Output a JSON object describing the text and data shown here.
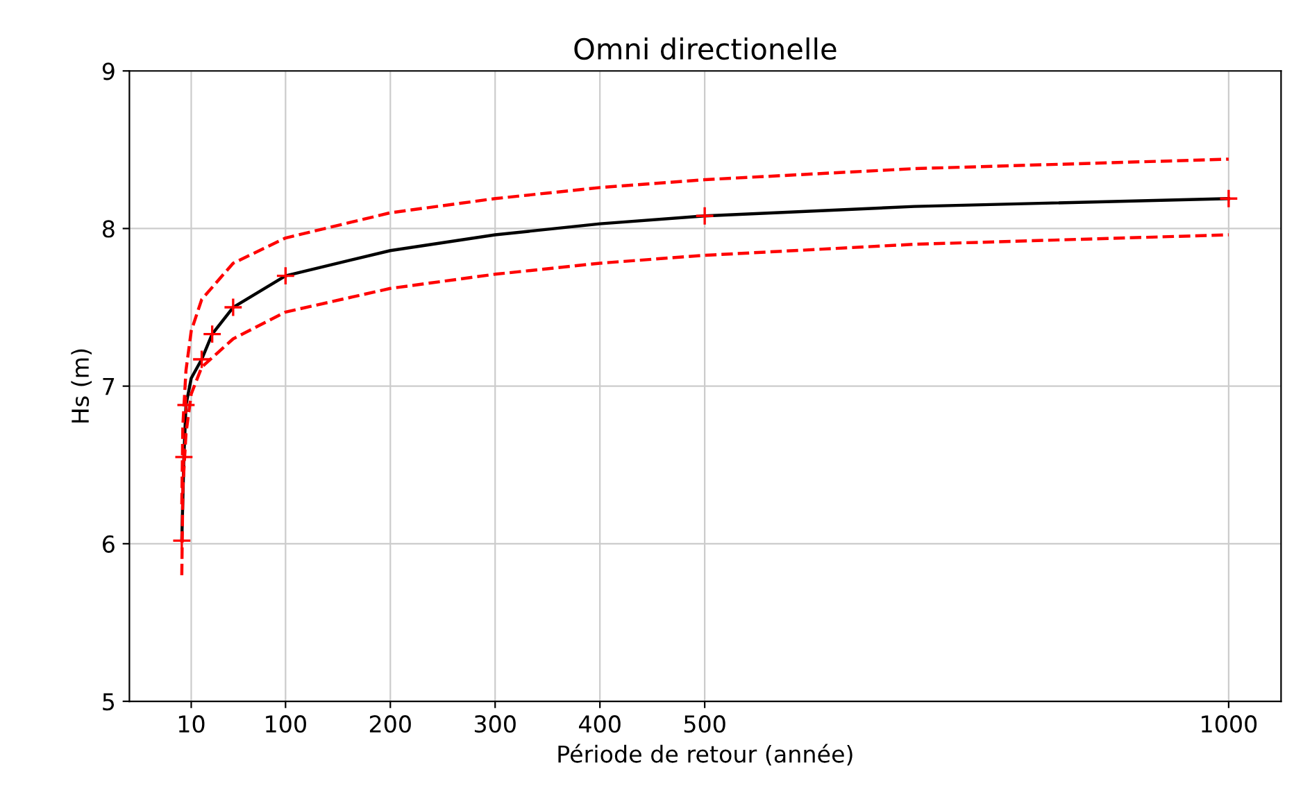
{
  "chart_data": {
    "type": "line",
    "title": "Omni directionelle",
    "xlabel": "Période de retour (année)",
    "ylabel": "Hs (m)",
    "xlim": [
      -49,
      1050
    ],
    "xticks": [
      10,
      100,
      200,
      300,
      400,
      500,
      1000
    ],
    "ylim": [
      5,
      9
    ],
    "yticks": [
      5,
      6,
      7,
      8,
      9
    ],
    "grid": true,
    "series": [
      {
        "color": "#000000",
        "line_style": "solid",
        "marker": "none",
        "x": [
          1,
          3,
          5,
          10,
          20,
          30,
          50,
          100,
          200,
          300,
          400,
          500,
          700,
          1000
        ],
        "values": [
          6.02,
          6.55,
          6.88,
          7.05,
          7.17,
          7.33,
          7.5,
          7.7,
          7.86,
          7.96,
          8.03,
          8.08,
          8.14,
          8.19
        ]
      },
      {
        "color": "#ff0000",
        "line_style": "dashed",
        "marker": "none",
        "x": [
          1,
          2,
          5,
          10,
          20,
          50,
          100,
          200,
          300,
          400,
          500,
          700,
          1000
        ],
        "values": [
          6.25,
          6.75,
          7.1,
          7.35,
          7.55,
          7.78,
          7.94,
          8.1,
          8.19,
          8.26,
          8.31,
          8.38,
          8.44
        ]
      },
      {
        "color": "#ff0000",
        "line_style": "dashed",
        "marker": "none",
        "x": [
          1,
          2,
          5,
          10,
          20,
          50,
          100,
          200,
          300,
          400,
          500,
          700,
          1000
        ],
        "values": [
          5.8,
          6.35,
          6.7,
          6.95,
          7.12,
          7.3,
          7.47,
          7.62,
          7.71,
          7.78,
          7.83,
          7.9,
          7.96
        ]
      },
      {
        "type": "scatter",
        "color": "#ff0000",
        "marker": "cross",
        "x": [
          1,
          3,
          5,
          20,
          30,
          50,
          100,
          500,
          1000
        ],
        "values": [
          6.02,
          6.55,
          6.88,
          7.17,
          7.33,
          7.5,
          7.7,
          8.08,
          8.19
        ]
      }
    ]
  }
}
